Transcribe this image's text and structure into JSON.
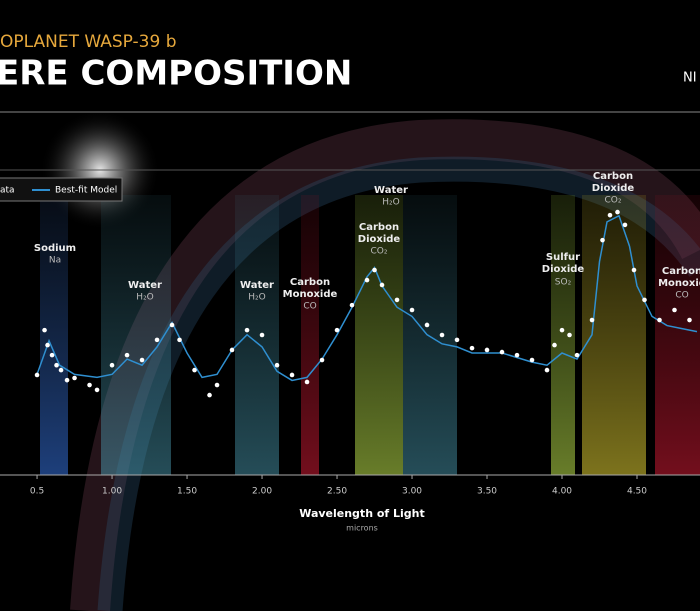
{
  "header": {
    "kicker": "OPLANET WASP-39 b",
    "title": "ERE COMPOSITION",
    "instrument": "NI"
  },
  "chart_data": {
    "type": "scatter",
    "xlabel": "Wavelength of Light",
    "xunit": "microns",
    "xlim": [
      0.253,
      4.92
    ],
    "ylim": [
      0,
      100
    ],
    "xticks": [
      0.5,
      {
        "value": 1,
        "label": "1.00"
      },
      {
        "value": 1.5,
        "label": "1.50"
      },
      {
        "value": 2,
        "label": "2.00"
      },
      {
        "value": 2.5,
        "label": "2.50"
      },
      {
        "value": 3,
        "label": "3.00"
      },
      {
        "value": 3.5,
        "label": "3.50"
      },
      {
        "value": 4,
        "label": "4.00"
      },
      {
        "value": 4.5,
        "label": "4.50"
      }
    ],
    "series": [
      {
        "name": "ata",
        "color": "#ffffff",
        "x": [
          0.5,
          0.55,
          0.57,
          0.6,
          0.63,
          0.66,
          0.7,
          0.75,
          0.85,
          0.9,
          1.0,
          1.1,
          1.2,
          1.3,
          1.4,
          1.45,
          1.55,
          1.65,
          1.7,
          1.8,
          1.9,
          2.0,
          2.1,
          2.2,
          2.3,
          2.4,
          2.5,
          2.6,
          2.7,
          2.75,
          2.8,
          2.9,
          3.0,
          3.1,
          3.2,
          3.3,
          3.4,
          3.5,
          3.6,
          3.7,
          3.8,
          3.9,
          3.95,
          4.0,
          4.05,
          4.1,
          4.2,
          4.27,
          4.32,
          4.37,
          4.42,
          4.48,
          4.55,
          4.65,
          4.75,
          4.85
        ],
        "values": [
          32.8,
          47.5,
          42.6,
          39.3,
          36,
          34.4,
          31.1,
          31.8,
          29.5,
          27.9,
          36,
          39.3,
          37.7,
          44.3,
          49.2,
          44.3,
          34.4,
          26.2,
          29.5,
          41,
          47.5,
          45.9,
          36,
          32.8,
          30.5,
          37.7,
          47.5,
          55.7,
          63.9,
          67.2,
          62.3,
          57.4,
          54.1,
          49.2,
          45.9,
          44.3,
          41.6,
          41,
          40.3,
          39.3,
          37.7,
          34.4,
          42.6,
          47.5,
          45.9,
          39.3,
          50.8,
          77,
          85.2,
          86.2,
          82,
          67.2,
          57.4,
          50.8,
          54.1,
          50.8
        ]
      },
      {
        "name": "Best-fit Model",
        "color": "#2f8fd0",
        "x": [
          0.5,
          0.58,
          0.65,
          0.75,
          0.9,
          1.0,
          1.1,
          1.2,
          1.3,
          1.4,
          1.5,
          1.6,
          1.7,
          1.8,
          1.9,
          2.0,
          2.1,
          2.2,
          2.3,
          2.4,
          2.5,
          2.6,
          2.7,
          2.75,
          2.8,
          2.9,
          3.0,
          3.1,
          3.2,
          3.3,
          3.4,
          3.6,
          3.8,
          3.9,
          4.0,
          4.1,
          4.2,
          4.25,
          4.3,
          4.38,
          4.45,
          4.5,
          4.6,
          4.7,
          4.8,
          4.9
        ],
        "values": [
          33,
          44,
          36,
          33,
          32,
          33,
          38,
          36,
          42,
          50,
          40,
          32,
          33,
          41,
          46,
          42,
          34,
          31,
          32,
          38,
          46,
          55,
          65,
          68,
          62,
          55,
          52,
          46,
          43,
          42,
          40,
          40,
          37,
          36,
          40,
          38,
          46,
          70,
          83,
          85,
          75,
          62,
          52,
          49,
          48,
          47
        ]
      }
    ],
    "annotations": [
      {
        "label": "Sodium",
        "formula": "Na"
      },
      {
        "label": "Water",
        "formula": "H₂O"
      },
      {
        "label": "Water",
        "formula": "H₂O"
      },
      {
        "label": "Carbon",
        "label2": "Monoxide",
        "formula": "CO"
      },
      {
        "label": "Carbon",
        "label2": "Dioxide",
        "formula": "CO₂"
      },
      {
        "label": "Water",
        "formula": "H₂O"
      },
      {
        "label": "Sulfur",
        "label2": "Dioxide",
        "formula": "SO₂"
      },
      {
        "label": "Carbon",
        "label2": "Dioxide",
        "formula": "CO₂"
      },
      {
        "label": "Carbon",
        "label2": "Monoxid",
        "formula": "CO"
      }
    ]
  }
}
